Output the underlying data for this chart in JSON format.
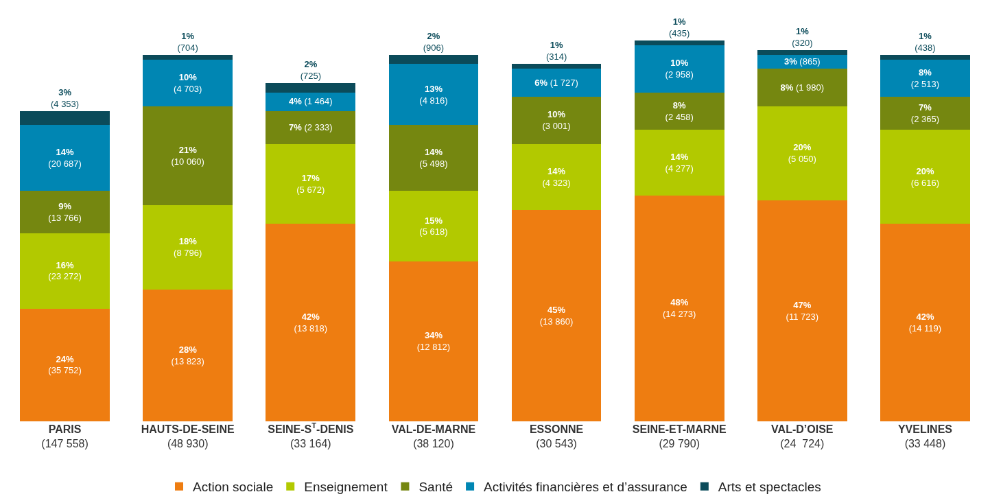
{
  "chart_data": {
    "type": "bar",
    "stacked": true,
    "legend": "bottom",
    "categories": [
      "PARIS\n(147 558)",
      "HAUTS-DE-SEINE\n(48 930)",
      "SEINE-S$^{T}$-DENIS\n(33 164)",
      "VAL-DE-MARNE\n(38 120)",
      "ESSONNE\n(30 543)",
      "SEINE-ET-MARNE\n(29 790)",
      "VAL-D’OISE\n(24  724)",
      "YVELINES\n(33 448)"
    ],
    "series": [
      {
        "name": "Action sociale",
        "color": "#ee7d11",
        "values": [
          24,
          28,
          42,
          34,
          45,
          48,
          47,
          42
        ],
        "value_labels": [
          "24%\n(35 752)",
          "28%\n(13 823)",
          "42%\n(13 818)",
          "34%\n(12 812)",
          "45%\n(13 860)",
          "48%\n(14 273)",
          "47%\n(11 723)",
          "42%\n(14 119)"
        ]
      },
      {
        "name": "Enseignement",
        "color": "#b2c900",
        "values": [
          16,
          18,
          17,
          15,
          14,
          14,
          20,
          20
        ],
        "value_labels": [
          "16%\n(23 272)",
          "18%\n(8 796)",
          "17%\n(5 672)",
          "15%\n(5 618)",
          "14%\n(4 323)",
          "14%\n(4 277)",
          "20%\n(5 050)",
          "20%\n(6 616)"
        ]
      },
      {
        "name": "Santé",
        "color": "#758710",
        "values": [
          9,
          21,
          7,
          14,
          10,
          8,
          8,
          7
        ],
        "value_labels": [
          "9%\n(13 766)",
          "21%\n(10 060)",
          "7% (2 333)",
          "14%\n(5 498)",
          "10%\n(3 001)",
          "8%\n(2 458)",
          "8% (1 980)",
          "7%\n(2 365)"
        ]
      },
      {
        "name": "Activités financières et d’assurance",
        "color": "#0086b3",
        "values": [
          14,
          10,
          4,
          13,
          6,
          10,
          3,
          8
        ],
        "value_labels": [
          "14%\n(20 687)",
          "10%\n(4 703)",
          "4% (1 464)",
          "13%\n(4 816)",
          "6% (1 727)",
          "10%\n(2 958)",
          "3% (865)",
          "8%\n(2 513)"
        ]
      },
      {
        "name": "Arts et spectacles",
        "color": "#0b4b5a",
        "values": [
          3,
          1,
          2,
          2,
          1,
          1,
          1,
          1
        ],
        "value_labels": [
          "3%\n(4 353)",
          "1%\n(704)",
          "2%\n(725)",
          "2%\n(906)",
          "1%\n(314)",
          "1%\n(435)",
          "1%\n(320)",
          "1%\n(438)"
        ]
      }
    ]
  }
}
